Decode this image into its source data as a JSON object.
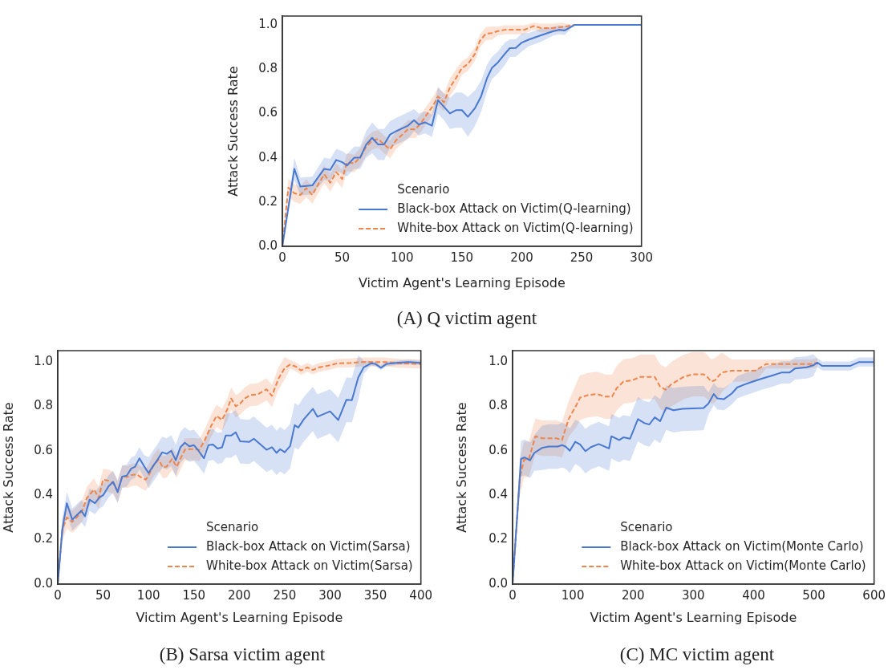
{
  "chart_data": [
    {
      "type": "line",
      "title": "(A) Q victim agent",
      "xlabel": "Victim Agent's Learning Episode",
      "ylabel": "Attack Success Rate",
      "legend_title": "Scenario",
      "legend": "bottom right",
      "xlim": [
        0,
        300
      ],
      "xticks": [
        0,
        50,
        100,
        150,
        200,
        250,
        300
      ],
      "ylim": [
        0,
        1.04
      ],
      "yticks": [
        {
          "value": 0,
          "label": "0.0"
        },
        {
          "value": 0.2,
          "label": "0.2"
        },
        {
          "value": 0.4,
          "label": "0.4"
        },
        {
          "value": 0.6,
          "label": "0.6"
        },
        {
          "value": 0.8,
          "label": "0.8"
        },
        {
          "value": 1,
          "label": "1.0"
        }
      ],
      "series": [
        {
          "name": "Black-box Attack on Victim(Q-learning)",
          "color": "#4878d0",
          "line_style": "solid",
          "x": [
            0,
            10,
            15,
            25,
            35,
            40,
            45,
            50,
            54,
            60,
            65,
            70,
            75,
            80,
            85,
            90,
            95,
            101,
            105,
            110,
            114,
            119,
            125,
            130,
            135,
            140,
            145,
            150,
            155,
            161,
            166,
            171,
            175,
            180,
            186,
            190,
            195,
            200,
            206,
            216,
            226,
            231,
            236,
            244,
            300
          ],
          "values": [
            0,
            0.35,
            0.27,
            0.275,
            0.35,
            0.345,
            0.39,
            0.38,
            0.365,
            0.4,
            0.4,
            0.46,
            0.49,
            0.46,
            0.46,
            0.505,
            0.52,
            0.535,
            0.545,
            0.57,
            0.55,
            0.56,
            0.545,
            0.66,
            0.63,
            0.6,
            0.615,
            0.615,
            0.585,
            0.625,
            0.677,
            0.76,
            0.805,
            0.83,
            0.87,
            0.895,
            0.896,
            0.92,
            0.934,
            0.953,
            0.971,
            0.978,
            0.975,
            1,
            1
          ],
          "lower": [
            0,
            0.3,
            0.23,
            0.235,
            0.3,
            0.295,
            0.34,
            0.33,
            0.315,
            0.35,
            0.35,
            0.4,
            0.42,
            0.39,
            0.39,
            0.445,
            0.46,
            0.475,
            0.485,
            0.52,
            0.5,
            0.51,
            0.495,
            0.6,
            0.57,
            0.53,
            0.535,
            0.535,
            0.495,
            0.545,
            0.607,
            0.7,
            0.755,
            0.78,
            0.82,
            0.855,
            0.856,
            0.88,
            0.904,
            0.923,
            0.951,
            0.958,
            0.955,
            1,
            1
          ],
          "upper": [
            0,
            0.4,
            0.31,
            0.315,
            0.4,
            0.395,
            0.44,
            0.43,
            0.415,
            0.45,
            0.45,
            0.52,
            0.56,
            0.53,
            0.53,
            0.565,
            0.58,
            0.595,
            0.605,
            0.62,
            0.6,
            0.61,
            0.595,
            0.72,
            0.69,
            0.67,
            0.695,
            0.695,
            0.675,
            0.705,
            0.747,
            0.82,
            0.855,
            0.88,
            0.92,
            0.935,
            0.936,
            0.96,
            0.964,
            0.983,
            0.991,
            0.998,
            0.995,
            1,
            1
          ]
        },
        {
          "name": "White-box Attack on Victim(Q-learning)",
          "color": "#ee854a",
          "line_style": "dashed",
          "x": [
            0,
            5,
            10,
            15,
            20,
            25,
            30,
            35,
            40,
            45,
            50,
            54,
            60,
            65,
            70,
            75,
            80,
            85,
            90,
            95,
            101,
            105,
            111,
            116,
            120,
            126,
            130,
            135,
            140,
            145,
            150,
            155,
            161,
            165,
            170,
            175,
            180,
            186,
            195,
            202,
            210,
            216,
            226,
            233,
            244,
            300
          ],
          "values": [
            0,
            0.265,
            0.24,
            0.232,
            0.263,
            0.232,
            0.28,
            0.325,
            0.287,
            0.335,
            0.304,
            0.38,
            0.374,
            0.403,
            0.45,
            0.477,
            0.485,
            0.46,
            0.438,
            0.479,
            0.508,
            0.53,
            0.528,
            0.558,
            0.59,
            0.636,
            0.677,
            0.65,
            0.718,
            0.759,
            0.805,
            0.823,
            0.87,
            0.928,
            0.96,
            0.963,
            0.972,
            0.978,
            0.978,
            0.978,
            0.995,
            0.986,
            0.986,
            0.99,
            1,
            1
          ],
          "lower": [
            0,
            0.225,
            0.2,
            0.192,
            0.223,
            0.192,
            0.24,
            0.285,
            0.247,
            0.295,
            0.264,
            0.34,
            0.334,
            0.363,
            0.41,
            0.437,
            0.445,
            0.42,
            0.398,
            0.439,
            0.468,
            0.49,
            0.488,
            0.518,
            0.55,
            0.596,
            0.637,
            0.61,
            0.678,
            0.719,
            0.775,
            0.793,
            0.84,
            0.898,
            0.93,
            0.933,
            0.952,
            0.958,
            0.958,
            0.958,
            0.98,
            0.966,
            0.966,
            0.97,
            1,
            1
          ],
          "upper": [
            0,
            0.305,
            0.28,
            0.272,
            0.303,
            0.272,
            0.32,
            0.365,
            0.327,
            0.375,
            0.344,
            0.42,
            0.414,
            0.443,
            0.49,
            0.517,
            0.525,
            0.5,
            0.478,
            0.519,
            0.548,
            0.57,
            0.568,
            0.598,
            0.63,
            0.676,
            0.717,
            0.69,
            0.758,
            0.799,
            0.835,
            0.853,
            0.9,
            0.958,
            0.99,
            0.993,
            0.992,
            0.998,
            0.998,
            0.998,
            1.01,
            1.006,
            1.006,
            1.01,
            1,
            1
          ]
        }
      ]
    },
    {
      "type": "line",
      "title": "(B) Sarsa victim agent",
      "xlabel": "Victim Agent's Learning Episode",
      "ylabel": "Attack Success Rate",
      "legend_title": "Scenario",
      "legend": "bottom right",
      "xlim": [
        0,
        400
      ],
      "xticks": [
        0,
        50,
        100,
        150,
        200,
        250,
        300,
        350,
        400
      ],
      "ylim": [
        0,
        1.05
      ],
      "yticks": [
        {
          "value": 0,
          "label": "0.0"
        },
        {
          "value": 0.2,
          "label": "0.2"
        },
        {
          "value": 0.4,
          "label": "0.4"
        },
        {
          "value": 0.6,
          "label": "0.6"
        },
        {
          "value": 0.8,
          "label": "0.8"
        },
        {
          "value": 1,
          "label": "1.0"
        }
      ],
      "series": [
        {
          "name": "Black-box Attack on Victim(Sarsa)",
          "color": "#4878d0",
          "line_style": "solid",
          "x": [
            0,
            5,
            10,
            16,
            21,
            26,
            30,
            35,
            41,
            46,
            50,
            56,
            61,
            66,
            71,
            76,
            81,
            85,
            90,
            95,
            100,
            105,
            110,
            115,
            120,
            125,
            130,
            135,
            140,
            145,
            150,
            155,
            161,
            166,
            171,
            176,
            181,
            185,
            191,
            196,
            201,
            211,
            216,
            230,
            236,
            241,
            245,
            250,
            256,
            261,
            265,
            271,
            281,
            286,
            300,
            309,
            318,
            324,
            331,
            337,
            345,
            350,
            356,
            362,
            375,
            387,
            400
          ],
          "values": [
            0,
            0.245,
            0.364,
            0.29,
            0.31,
            0.33,
            0.305,
            0.38,
            0.364,
            0.39,
            0.4,
            0.44,
            0.46,
            0.414,
            0.484,
            0.488,
            0.52,
            0.527,
            0.566,
            0.531,
            0.5,
            0.531,
            0.56,
            0.593,
            0.586,
            0.6,
            0.557,
            0.615,
            0.636,
            0.62,
            0.625,
            0.6,
            0.566,
            0.625,
            0.628,
            0.61,
            0.615,
            0.668,
            0.668,
            0.683,
            0.642,
            0.64,
            0.654,
            0.604,
            0.616,
            0.59,
            0.607,
            0.593,
            0.621,
            0.715,
            0.704,
            0.741,
            0.788,
            0.753,
            0.777,
            0.738,
            0.829,
            0.827,
            0.929,
            0.975,
            0.993,
            0.99,
            0.973,
            0.99,
            0.996,
            0.999,
            0.995
          ],
          "lower": [
            0,
            0.195,
            0.314,
            0.24,
            0.26,
            0.28,
            0.255,
            0.33,
            0.314,
            0.34,
            0.35,
            0.39,
            0.41,
            0.364,
            0.434,
            0.438,
            0.47,
            0.477,
            0.516,
            0.481,
            0.43,
            0.461,
            0.49,
            0.523,
            0.516,
            0.53,
            0.487,
            0.545,
            0.566,
            0.55,
            0.555,
            0.53,
            0.496,
            0.555,
            0.558,
            0.54,
            0.545,
            0.568,
            0.568,
            0.583,
            0.542,
            0.54,
            0.554,
            0.504,
            0.516,
            0.49,
            0.507,
            0.493,
            0.521,
            0.615,
            0.604,
            0.641,
            0.688,
            0.653,
            0.677,
            0.638,
            0.729,
            0.727,
            0.829,
            0.945,
            0.983,
            0.98,
            0.963,
            0.98,
            0.986,
            0.989,
            0.985
          ],
          "upper": [
            0,
            0.295,
            0.414,
            0.34,
            0.36,
            0.38,
            0.355,
            0.43,
            0.414,
            0.44,
            0.45,
            0.49,
            0.51,
            0.464,
            0.534,
            0.538,
            0.57,
            0.577,
            0.616,
            0.581,
            0.57,
            0.601,
            0.63,
            0.663,
            0.656,
            0.67,
            0.627,
            0.685,
            0.706,
            0.69,
            0.695,
            0.67,
            0.636,
            0.695,
            0.698,
            0.68,
            0.685,
            0.768,
            0.768,
            0.783,
            0.742,
            0.74,
            0.754,
            0.704,
            0.716,
            0.69,
            0.707,
            0.693,
            0.721,
            0.815,
            0.804,
            0.841,
            0.888,
            0.853,
            0.877,
            0.838,
            0.929,
            0.927,
            1.029,
            1.005,
            1.003,
            1,
            0.983,
            1,
            1.006,
            1.009,
            1.005
          ]
        },
        {
          "name": "White-box Attack on Victim(Sarsa)",
          "color": "#ee854a",
          "line_style": "dashed",
          "x": [
            0,
            5,
            10,
            16,
            21,
            27,
            32,
            40,
            45,
            50,
            56,
            61,
            66,
            71,
            77,
            81,
            87,
            91,
            97,
            100,
            105,
            111,
            116,
            120,
            126,
            131,
            135,
            140,
            146,
            152,
            156,
            162,
            169,
            175,
            181,
            187,
            191,
            196,
            201,
            206,
            212,
            220,
            230,
            236,
            243,
            250,
            256,
            262,
            268,
            275,
            281,
            288,
            300,
            308,
            323,
            334,
            361,
            375,
            400
          ],
          "values": [
            0,
            0.245,
            0.3,
            0.28,
            0.3,
            0.33,
            0.387,
            0.426,
            0.387,
            0.47,
            0.465,
            0.455,
            0.418,
            0.484,
            0.482,
            0.49,
            0.494,
            0.482,
            0.47,
            0.488,
            0.531,
            0.56,
            0.525,
            0.529,
            0.563,
            0.528,
            0.563,
            0.605,
            0.607,
            0.607,
            0.603,
            0.648,
            0.712,
            0.757,
            0.738,
            0.788,
            0.835,
            0.8,
            0.812,
            0.835,
            0.85,
            0.853,
            0.876,
            0.847,
            0.923,
            0.972,
            0.987,
            0.979,
            0.961,
            0.975,
            0.963,
            0.975,
            0.984,
            0.993,
            0.995,
            0.999,
            0.999,
            0.993,
            0.99
          ],
          "lower": [
            0,
            0.195,
            0.25,
            0.23,
            0.25,
            0.28,
            0.337,
            0.376,
            0.337,
            0.42,
            0.415,
            0.405,
            0.368,
            0.434,
            0.432,
            0.44,
            0.444,
            0.432,
            0.42,
            0.438,
            0.481,
            0.51,
            0.475,
            0.479,
            0.513,
            0.478,
            0.513,
            0.555,
            0.557,
            0.557,
            0.553,
            0.598,
            0.662,
            0.707,
            0.688,
            0.738,
            0.785,
            0.75,
            0.762,
            0.785,
            0.8,
            0.803,
            0.826,
            0.797,
            0.873,
            0.922,
            0.967,
            0.959,
            0.941,
            0.955,
            0.943,
            0.955,
            0.964,
            0.973,
            0.975,
            0.979,
            0.979,
            0.973,
            0.97
          ],
          "upper": [
            0,
            0.295,
            0.35,
            0.33,
            0.35,
            0.38,
            0.437,
            0.476,
            0.437,
            0.52,
            0.515,
            0.505,
            0.468,
            0.534,
            0.532,
            0.54,
            0.544,
            0.532,
            0.52,
            0.538,
            0.581,
            0.61,
            0.575,
            0.579,
            0.613,
            0.578,
            0.613,
            0.655,
            0.657,
            0.657,
            0.653,
            0.698,
            0.762,
            0.807,
            0.788,
            0.838,
            0.885,
            0.85,
            0.862,
            0.885,
            0.9,
            0.903,
            0.926,
            0.897,
            0.973,
            1.022,
            1.007,
            0.999,
            0.981,
            0.995,
            0.983,
            0.995,
            1.004,
            1.013,
            1.015,
            1.019,
            1.019,
            1.013,
            1.01
          ]
        }
      ]
    },
    {
      "type": "line",
      "title": "(C) MC victim agent",
      "xlabel": "Victim Agent's Learning Episode",
      "ylabel": "Attack Success Rate",
      "legend_title": "Scenario",
      "legend": "bottom right",
      "xlim": [
        0,
        600
      ],
      "xticks": [
        0,
        100,
        200,
        300,
        400,
        500,
        600
      ],
      "ylim": [
        0,
        1.05
      ],
      "yticks": [
        {
          "value": 0,
          "label": "0.0"
        },
        {
          "value": 0.2,
          "label": "0.2"
        },
        {
          "value": 0.4,
          "label": "0.4"
        },
        {
          "value": 0.6,
          "label": "0.6"
        },
        {
          "value": 0.8,
          "label": "0.8"
        },
        {
          "value": 1,
          "label": "1.0"
        }
      ],
      "series": [
        {
          "name": "Black-box Attack on Victim(Monte Carlo)",
          "color": "#4878d0",
          "line_style": "solid",
          "x": [
            0,
            14,
            20,
            29,
            36,
            49,
            60,
            75,
            82,
            88,
            95,
            104,
            112,
            121,
            130,
            143,
            160,
            164,
            177,
            184,
            195,
            208,
            219,
            227,
            236,
            245,
            255,
            267,
            282,
            299,
            317,
            325,
            334,
            340,
            351,
            364,
            373,
            386,
            399,
            412,
            430,
            447,
            460,
            469,
            488,
            499,
            506,
            514,
            560,
            575,
            600
          ],
          "values": [
            0,
            0.563,
            0.57,
            0.557,
            0.59,
            0.613,
            0.619,
            0.619,
            0.625,
            0.619,
            0.6,
            0.64,
            0.628,
            0.598,
            0.616,
            0.63,
            0.61,
            0.665,
            0.648,
            0.66,
            0.654,
            0.742,
            0.724,
            0.718,
            0.75,
            0.733,
            0.794,
            0.782,
            0.788,
            0.79,
            0.792,
            0.812,
            0.855,
            0.835,
            0.832,
            0.858,
            0.885,
            0.899,
            0.911,
            0.923,
            0.937,
            0.952,
            0.952,
            0.97,
            0.975,
            0.984,
            0.996,
            0.981,
            0.981,
            0.999,
            0.999
          ],
          "lower": [
            0,
            0.483,
            0.49,
            0.477,
            0.51,
            0.513,
            0.519,
            0.519,
            0.525,
            0.519,
            0.5,
            0.54,
            0.528,
            0.498,
            0.516,
            0.53,
            0.51,
            0.565,
            0.548,
            0.56,
            0.554,
            0.642,
            0.624,
            0.618,
            0.65,
            0.633,
            0.694,
            0.682,
            0.688,
            0.69,
            0.692,
            0.762,
            0.805,
            0.785,
            0.782,
            0.808,
            0.835,
            0.849,
            0.861,
            0.873,
            0.887,
            0.902,
            0.902,
            0.92,
            0.925,
            0.934,
            0.976,
            0.961,
            0.961,
            0.979,
            0.979
          ],
          "upper": [
            0,
            0.643,
            0.65,
            0.637,
            0.67,
            0.713,
            0.719,
            0.719,
            0.725,
            0.719,
            0.7,
            0.74,
            0.728,
            0.698,
            0.716,
            0.73,
            0.71,
            0.765,
            0.748,
            0.76,
            0.754,
            0.842,
            0.824,
            0.818,
            0.85,
            0.833,
            0.894,
            0.882,
            0.888,
            0.89,
            0.892,
            0.862,
            0.905,
            0.885,
            0.882,
            0.908,
            0.935,
            0.949,
            0.961,
            0.973,
            0.987,
            1.002,
            1.002,
            1.02,
            1.025,
            1.034,
            1.016,
            1.001,
            1.001,
            1.019,
            1.019
          ]
        },
        {
          "name": "White-box Attack on Victim(Monte Carlo)",
          "color": "#ee854a",
          "line_style": "dashed",
          "x": [
            0,
            12,
            19,
            27,
            38,
            49,
            73,
            82,
            93,
            106,
            112,
            125,
            140,
            154,
            165,
            173,
            184,
            199,
            212,
            227,
            236,
            245,
            254,
            264,
            284,
            299,
            317,
            323,
            330,
            336,
            347,
            364,
            386,
            403,
            421,
            451,
            495,
            506
          ],
          "values": [
            0,
            0.478,
            0.56,
            0.563,
            0.665,
            0.656,
            0.656,
            0.648,
            0.742,
            0.806,
            0.839,
            0.85,
            0.855,
            0.843,
            0.843,
            0.882,
            0.911,
            0.917,
            0.932,
            0.932,
            0.932,
            0.888,
            0.874,
            0.9,
            0.932,
            0.944,
            0.944,
            0.932,
            0.911,
            0.917,
            0.952,
            0.96,
            0.96,
            0.96,
            0.99,
            0.99,
            0.99,
            0.996
          ],
          "lower": [
            0,
            0.398,
            0.48,
            0.483,
            0.585,
            0.576,
            0.576,
            0.568,
            0.662,
            0.706,
            0.739,
            0.75,
            0.755,
            0.743,
            0.743,
            0.782,
            0.811,
            0.817,
            0.832,
            0.832,
            0.832,
            0.788,
            0.774,
            0.8,
            0.832,
            0.844,
            0.844,
            0.832,
            0.811,
            0.817,
            0.862,
            0.91,
            0.91,
            0.91,
            0.97,
            0.97,
            0.97,
            0.976
          ],
          "upper": [
            0,
            0.558,
            0.64,
            0.643,
            0.745,
            0.736,
            0.736,
            0.728,
            0.822,
            0.906,
            0.939,
            0.95,
            0.955,
            0.943,
            0.943,
            0.982,
            1.011,
            1.017,
            1.032,
            1.032,
            1.032,
            0.988,
            0.974,
            1,
            1.032,
            1.044,
            1.044,
            1.032,
            1.011,
            1.017,
            1.042,
            1.01,
            1.01,
            1.01,
            1.01,
            1.01,
            1.01,
            1.016
          ]
        }
      ]
    }
  ]
}
